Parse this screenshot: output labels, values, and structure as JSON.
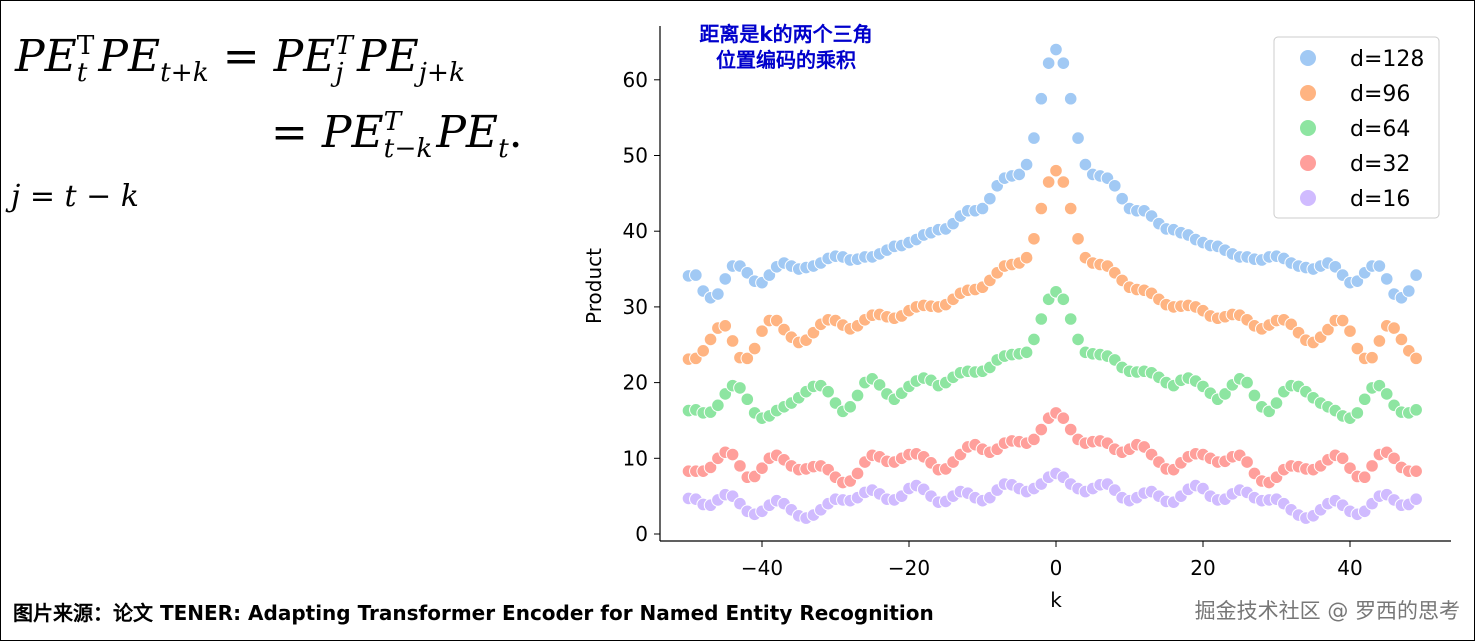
{
  "formula": {
    "line1": {
      "a": "PE",
      "a_sup": "T",
      "a_sub": "t",
      "b": "PE",
      "b_sub": "t+k",
      "eq": "=",
      "c": "PE",
      "c_sup": "T",
      "c_sub": "j",
      "d": "PE",
      "d_sub": "j+k"
    },
    "line2": {
      "eq": "=",
      "a": "PE",
      "a_sup": "T",
      "a_sub": "t−k",
      "b": "PE",
      "b_sub": "t",
      "end": "."
    },
    "line3": "j = t − k"
  },
  "footer": {
    "source": "图片来源：论文 TENER: Adapting Transformer Encoder for Named Entity Recognition",
    "watermark": "掘金技术社区 @ 罗西的思考"
  },
  "colors": {
    "title": "#0000cc",
    "d128": "#a1c9f4",
    "d96": "#ffb482",
    "d64": "#8de5a1",
    "d32": "#ff9f9b",
    "d16": "#d0bbff"
  },
  "chart_data": {
    "type": "scatter",
    "title_lines": [
      "距离是k的两个三角",
      "位置编码的乘积"
    ],
    "xlabel": "k",
    "ylabel": "Product",
    "x_start": -50,
    "x_end": 49,
    "symmetric_note": "values indexed by |k| (0..50); series are symmetric in k",
    "xlim": [
      -54,
      54
    ],
    "ylim": [
      -0.9,
      67
    ],
    "xticks": [
      -40,
      -20,
      0,
      20,
      40
    ],
    "xtick_labels": [
      "−40",
      "−20",
      "0",
      "20",
      "40"
    ],
    "yticks": [
      0,
      10,
      20,
      30,
      40,
      50,
      60
    ],
    "ytick_labels": [
      "0",
      "10",
      "20",
      "30",
      "40",
      "50",
      "60"
    ],
    "grid": false,
    "legend_position": "top-right",
    "series": [
      {
        "name": "d=128",
        "color": "#a1c9f4",
        "values_by_abs_k": [
          64,
          62.2,
          57.5,
          52.3,
          48.8,
          47.5,
          47.3,
          47,
          46,
          44.3,
          43,
          42.7,
          42.7,
          42,
          41,
          40.3,
          40.2,
          39.8,
          39.5,
          38.9,
          38.5,
          38.1,
          38,
          37.5,
          37,
          36.6,
          36.6,
          36.3,
          36.2,
          36.6,
          36.7,
          36.4,
          35.8,
          35.4,
          35.2,
          35,
          35.4,
          35.8,
          35.3,
          34.2,
          33.2,
          33.4,
          34.5,
          35.4,
          35.4,
          33.7,
          31.7,
          31.2,
          32.1,
          34.2,
          34.1
        ]
      },
      {
        "name": "d=96",
        "color": "#ffb482",
        "values_by_abs_k": [
          48,
          46.5,
          43,
          39,
          36.5,
          35.8,
          35.6,
          35.4,
          34.5,
          33.5,
          32.6,
          32.3,
          32.2,
          31.8,
          31,
          30.3,
          30,
          30.1,
          30.2,
          30,
          29.5,
          28.8,
          28.5,
          28.7,
          29,
          28.9,
          28.3,
          27.5,
          27.1,
          27.6,
          28.2,
          28.3,
          27.7,
          26.6,
          25.6,
          25.3,
          26,
          27,
          28.2,
          28.2,
          26.8,
          24.5,
          23.2,
          23.3,
          25.5,
          27.5,
          27.2,
          25.7,
          24.2,
          23.2,
          23.1
        ]
      },
      {
        "name": "d=64",
        "color": "#8de5a1",
        "values_by_abs_k": [
          32,
          31,
          28.4,
          25.7,
          24,
          23.8,
          23.7,
          23.5,
          23,
          22,
          21.5,
          21.4,
          21.5,
          21.3,
          20.7,
          20,
          19.6,
          20.3,
          20.6,
          20.2,
          19.5,
          18.6,
          17.8,
          18.5,
          19.7,
          20.5,
          20,
          18.3,
          16.8,
          16.2,
          17.3,
          18.8,
          19.6,
          19.5,
          18.8,
          18,
          17.3,
          16.8,
          16.3,
          15.6,
          15.3,
          16,
          17.8,
          19.3,
          19.6,
          18.5,
          17,
          16.1,
          16,
          16.4,
          16.3
        ]
      },
      {
        "name": "d=32",
        "color": "#ff9f9b",
        "values_by_abs_k": [
          16,
          15.3,
          13.8,
          12.5,
          12,
          12.2,
          12.3,
          12,
          11.2,
          10.8,
          11.2,
          11.8,
          11.5,
          10.5,
          9.5,
          8.6,
          8.5,
          9.4,
          10.2,
          10.6,
          10.5,
          10,
          9.5,
          9.6,
          10.2,
          10.4,
          9.5,
          8,
          7,
          6.8,
          7.5,
          8.5,
          9,
          8.9,
          8.6,
          8.5,
          9,
          9.8,
          10.4,
          10,
          8.7,
          7.6,
          7.5,
          9,
          10.5,
          10.8,
          10,
          8.8,
          8.3,
          8.3,
          8.3
        ]
      },
      {
        "name": "d=16",
        "color": "#d0bbff",
        "values_by_abs_k": [
          8,
          7.5,
          6.6,
          6,
          5.6,
          6,
          6.5,
          6.6,
          5.8,
          4.8,
          4.4,
          4.8,
          5.4,
          5.6,
          5,
          4.3,
          4.2,
          5,
          5.9,
          6.4,
          6,
          5,
          4.5,
          4.6,
          5.3,
          5.8,
          5.5,
          4.8,
          4.4,
          4.5,
          4.6,
          4,
          3.2,
          2.5,
          2.1,
          2.4,
          3.2,
          4,
          4.4,
          3.8,
          3,
          2.6,
          3,
          4,
          5,
          5.2,
          4.5,
          3.8,
          3.9,
          4.6,
          4.7
        ]
      }
    ]
  }
}
